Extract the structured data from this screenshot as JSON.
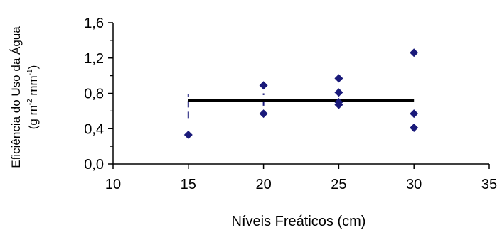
{
  "chart_data": {
    "type": "scatter",
    "xlabel": "Níveis Freáticos (cm)",
    "ylabel_line1": "Eficiência do Uso da Água",
    "ylabel_line2_prefix": "(g m",
    "ylabel_sup1": "-2",
    "ylabel_line2_middle": " mm",
    "ylabel_sup2": "-1",
    "ylabel_line2_suffix": ")",
    "xlim": [
      10,
      35
    ],
    "ylim": [
      0,
      1.6
    ],
    "x_ticks": [
      10,
      15,
      20,
      25,
      30,
      35
    ],
    "x_tick_labels": [
      "10",
      "15",
      "20",
      "25",
      "30",
      "35"
    ],
    "y_ticks": [
      0,
      0.4,
      0.8,
      1.2,
      1.6
    ],
    "y_tick_labels": [
      "0,0",
      "0,4",
      "0,8",
      "1,2",
      "1,6"
    ],
    "points": [
      {
        "x": 15,
        "y": 0.33
      },
      {
        "x": 20,
        "y": 0.89
      },
      {
        "x": 20,
        "y": 0.57
      },
      {
        "x": 25,
        "y": 0.97
      },
      {
        "x": 25,
        "y": 0.81
      },
      {
        "x": 25,
        "y": 0.7
      },
      {
        "x": 25,
        "y": 0.67
      },
      {
        "x": 30,
        "y": 1.26
      },
      {
        "x": 30,
        "y": 0.57
      },
      {
        "x": 30,
        "y": 0.41
      }
    ],
    "mean_line": {
      "x": [
        15,
        30
      ],
      "y": 0.72
    },
    "error_bars": [
      {
        "x": 15,
        "y_from": 0.52,
        "y_to": 0.79
      },
      {
        "x": 20,
        "y_from": 0.66,
        "y_to": 0.8
      }
    ],
    "grid": false,
    "colors": {
      "marker": "#1a1a7a",
      "mean_line": "#000000",
      "error_bar": "#1a1a7a",
      "axis": "#000000"
    }
  }
}
